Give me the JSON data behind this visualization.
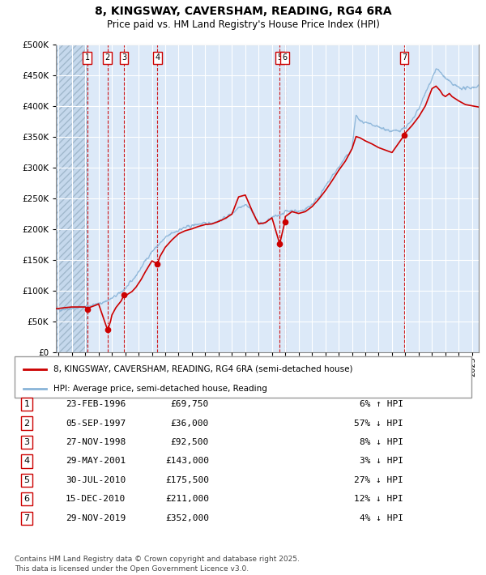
{
  "title1": "8, KINGSWAY, CAVERSHAM, READING, RG4 6RA",
  "title2": "Price paid vs. HM Land Registry's House Price Index (HPI)",
  "legend_label_red": "8, KINGSWAY, CAVERSHAM, READING, RG4 6RA (semi-detached house)",
  "legend_label_blue": "HPI: Average price, semi-detached house, Reading",
  "footer": "Contains HM Land Registry data © Crown copyright and database right 2025.\nThis data is licensed under the Open Government Licence v3.0.",
  "transactions": [
    {
      "num": 1,
      "date": "23-FEB-1996",
      "price": 69750,
      "pct": "6%",
      "dir": "↑",
      "year": 1996.14
    },
    {
      "num": 2,
      "date": "05-SEP-1997",
      "price": 36000,
      "pct": "57%",
      "dir": "↓",
      "year": 1997.67
    },
    {
      "num": 3,
      "date": "27-NOV-1998",
      "price": 92500,
      "pct": "8%",
      "dir": "↓",
      "year": 1998.9
    },
    {
      "num": 4,
      "date": "29-MAY-2001",
      "price": 143000,
      "pct": "3%",
      "dir": "↓",
      "year": 2001.41
    },
    {
      "num": 5,
      "date": "30-JUL-2010",
      "price": 175500,
      "pct": "27%",
      "dir": "↓",
      "year": 2010.58
    },
    {
      "num": 6,
      "date": "15-DEC-2010",
      "price": 211000,
      "pct": "12%",
      "dir": "↓",
      "year": 2010.96
    },
    {
      "num": 7,
      "date": "29-NOV-2019",
      "price": 352000,
      "pct": "4%",
      "dir": "↓",
      "year": 2019.91
    }
  ],
  "ylim": [
    0,
    500000
  ],
  "yticks": [
    0,
    50000,
    100000,
    150000,
    200000,
    250000,
    300000,
    350000,
    400000,
    450000,
    500000
  ],
  "xlim_start": 1993.8,
  "xlim_end": 2025.5,
  "chart_bg": "#dce9f8",
  "grid_color": "#ffffff",
  "hpi_color": "#8ab4d8",
  "price_color": "#cc0000",
  "dashed_color": "#cc0000",
  "hatch_color": "#b8cfe0"
}
